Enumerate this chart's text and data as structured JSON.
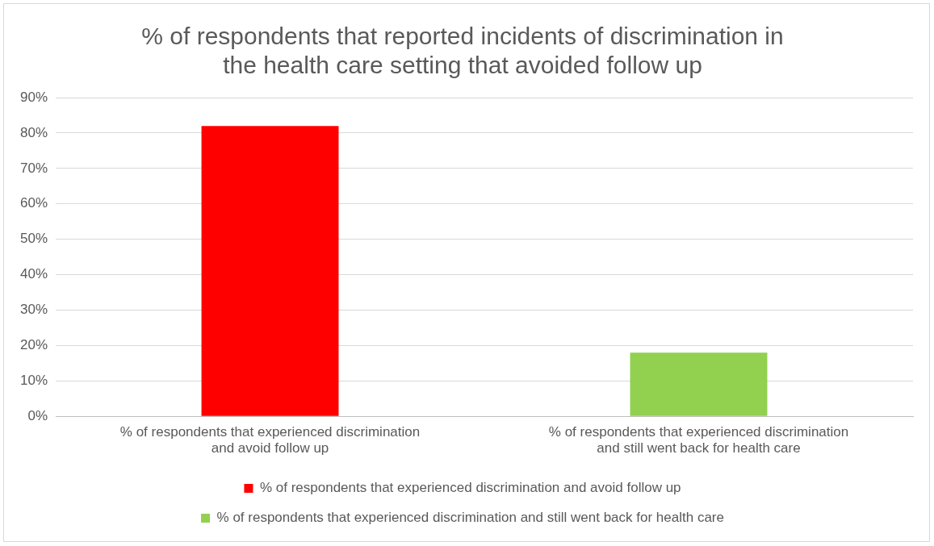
{
  "chart_data": {
    "type": "bar",
    "title": "% of respondents that reported incidents of discrimination in the health care setting that avoided follow up",
    "categories": [
      "% of respondents that experienced discrimination and avoid follow up",
      "% of respondents that experienced discrimination and still went back for health care"
    ],
    "series": [
      {
        "name": "% of respondents that experienced discrimination and avoid follow up",
        "color": "#ff0000",
        "values": [
          82,
          null
        ]
      },
      {
        "name": "% of respondents that experienced discrimination and still went back for health care",
        "color": "#92d050",
        "values": [
          null,
          18
        ]
      }
    ],
    "ylim": [
      0,
      90
    ],
    "yticks": [
      {
        "value": 0,
        "label": "0%"
      },
      {
        "value": 10,
        "label": "10%"
      },
      {
        "value": 20,
        "label": "20%"
      },
      {
        "value": 30,
        "label": "30%"
      },
      {
        "value": 40,
        "label": "40%"
      },
      {
        "value": 50,
        "label": "50%"
      },
      {
        "value": 60,
        "label": "60%"
      },
      {
        "value": 70,
        "label": "70%"
      },
      {
        "value": 80,
        "label": "80%"
      },
      {
        "value": 90,
        "label": "90%"
      }
    ],
    "grid": "y",
    "legend": "bottom"
  }
}
